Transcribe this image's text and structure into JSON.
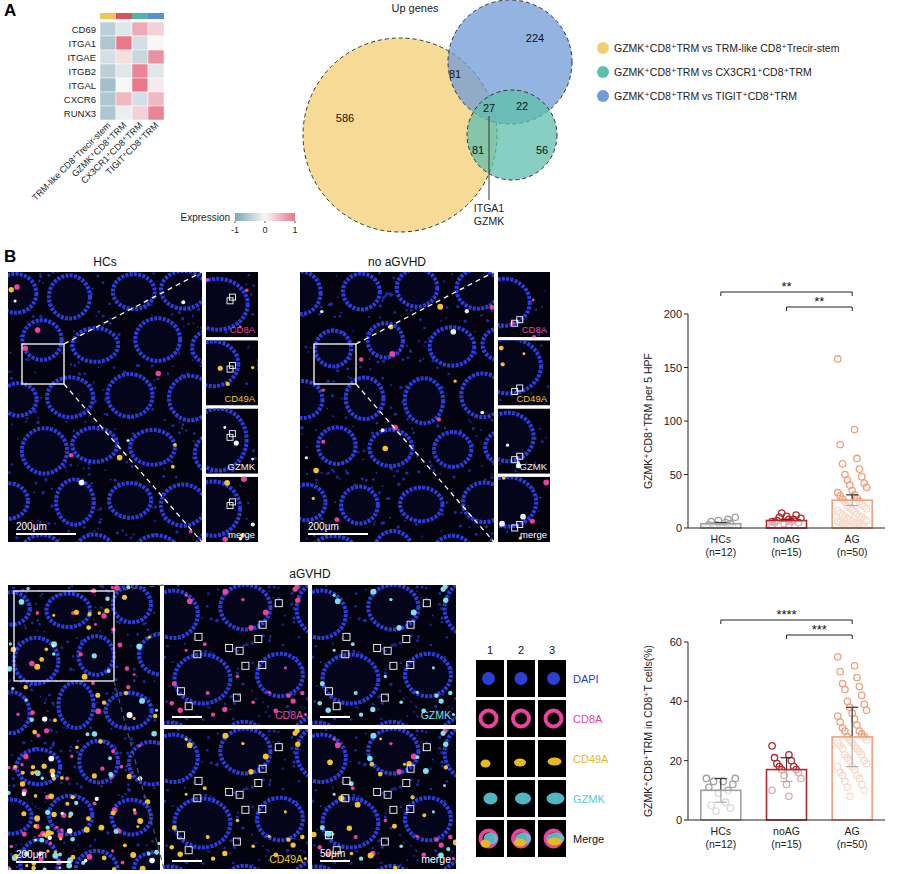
{
  "panel_labels": {
    "a": "A",
    "b": "B"
  },
  "chart_data": [
    {
      "type": "heatmap",
      "rows": [
        "CD69",
        "ITGA1",
        "ITGAE",
        "ITGB2",
        "ITGAL",
        "CXCR6",
        "RUNX3"
      ],
      "columns": [
        "TRM-like CD8⁺Trecir-stem",
        "GZMK⁺CD8⁺TRM",
        "CX3CR1⁺CD8⁺TRM",
        "TIGIT⁺CD8⁺TRM"
      ],
      "column_colors": [
        "#f2c45c",
        "#d9535e",
        "#4fb5a6",
        "#5b8fcf"
      ],
      "values": [
        [
          -0.5,
          -0.2,
          0.6,
          0.3
        ],
        [
          -0.6,
          1.0,
          -0.3,
          0.0
        ],
        [
          -0.3,
          0.2,
          -0.4,
          0.8
        ],
        [
          -0.5,
          -0.2,
          0.9,
          -0.2
        ],
        [
          -0.7,
          0.0,
          1.0,
          0.1
        ],
        [
          -0.6,
          0.5,
          -0.3,
          0.5
        ],
        [
          -0.6,
          -0.1,
          0.3,
          0.9
        ]
      ],
      "colorbar": {
        "title": "Expression",
        "range": [
          -1,
          1
        ],
        "ticks": [
          -1,
          0,
          1
        ],
        "colors": [
          "#7ea6b6",
          "#f7f7f7",
          "#e8788a"
        ]
      }
    },
    {
      "type": "bar",
      "y_label": "GZMK⁺CD8⁺TRM per 5 HPF",
      "categories": [
        "HCs\n(n=12)",
        "noAG\n(n=15)",
        "AG\n(n=50)"
      ],
      "values": [
        4,
        7,
        26
      ],
      "errors": [
        1,
        1,
        5
      ],
      "points": [
        [
          1,
          2,
          3,
          5,
          6,
          8,
          2,
          4,
          3,
          1,
          7,
          10
        ],
        [
          2,
          3,
          5,
          6,
          7,
          8,
          10,
          12,
          14,
          5,
          4,
          9,
          11,
          6,
          8
        ],
        [
          158,
          92,
          78,
          65,
          60,
          55,
          50,
          48,
          45,
          42,
          40,
          38,
          35,
          33,
          31,
          30,
          28,
          27,
          25,
          24,
          22,
          21,
          20,
          19,
          18,
          17,
          16,
          15,
          14,
          13,
          12,
          11,
          10,
          10,
          9,
          8,
          8,
          7,
          6,
          6,
          5,
          5,
          4,
          4,
          3,
          3,
          2,
          2,
          1,
          1
        ]
      ],
      "colors": [
        "#a0a0a0",
        "#b0282c",
        "#f0a07c"
      ],
      "ylim": [
        0,
        200
      ],
      "yticks": [
        0,
        50,
        100,
        150,
        200
      ],
      "significance": [
        {
          "from": 0,
          "to": 2,
          "label": "**"
        },
        {
          "from": 1,
          "to": 2,
          "label": "**"
        }
      ]
    },
    {
      "type": "bar",
      "y_label": "GZMK⁺CD8⁺TRM in CD8⁺T cells(%)",
      "categories": [
        "HCs\n(n=12)",
        "noAG\n(n=15)",
        "AG\n(n=50)"
      ],
      "values": [
        10,
        17,
        28
      ],
      "errors": [
        4,
        4,
        10
      ],
      "points": [
        [
          14,
          13,
          11,
          6,
          5,
          10,
          13,
          4,
          3,
          12,
          9,
          14
        ],
        [
          25,
          22,
          21,
          20,
          19,
          18,
          18,
          17,
          17,
          16,
          15,
          14,
          12,
          10,
          8
        ],
        [
          55,
          52,
          50,
          48,
          46,
          45,
          44,
          42,
          40,
          39,
          38,
          37,
          36,
          35,
          34,
          33,
          32,
          31,
          30,
          30,
          29,
          28,
          28,
          27,
          27,
          26,
          26,
          25,
          25,
          24,
          24,
          23,
          22,
          22,
          21,
          20,
          20,
          19,
          18,
          18,
          17,
          16,
          15,
          15,
          14,
          13,
          12,
          11,
          10,
          8
        ]
      ],
      "colors": [
        "#a0a0a0",
        "#b0282c",
        "#f0a07c"
      ],
      "ylim": [
        0,
        60
      ],
      "yticks": [
        0,
        20,
        40,
        60
      ],
      "significance": [
        {
          "from": 0,
          "to": 2,
          "label": "****"
        },
        {
          "from": 1,
          "to": 2,
          "label": "***"
        }
      ]
    }
  ],
  "venn": {
    "title": "Up genes",
    "sets": [
      {
        "name": "GZMK⁺CD8⁺TRM vs TRM-like CD8⁺Trecir-stem",
        "color": "#f3cf73"
      },
      {
        "name": "GZMK⁺CD8⁺TRM vs CX3CR1⁺CD8⁺TRM",
        "color": "#5fbfae"
      },
      {
        "name": "GZMK⁺CD8⁺TRM vs TIGIT⁺CD8⁺TRM",
        "color": "#6f9bd6"
      }
    ],
    "regions": [
      {
        "sets": [
          0
        ],
        "count": 586
      },
      {
        "sets": [
          2
        ],
        "count": 224
      },
      {
        "sets": [
          0,
          2
        ],
        "count": 81
      },
      {
        "sets": [
          0,
          1,
          2
        ],
        "count": 27
      },
      {
        "sets": [
          1,
          2
        ],
        "count": 22
      },
      {
        "sets": [
          0,
          1
        ],
        "count": 81
      },
      {
        "sets": [
          1
        ],
        "count": 56
      }
    ],
    "annotation": [
      "ITGA1",
      "GZMK"
    ]
  },
  "images": {
    "hcs": {
      "title": "HCs",
      "scale_bar": "200μm",
      "channels": [
        {
          "name": "CD8A",
          "color": "#e8449c"
        },
        {
          "name": "CD49A",
          "color": "#f2c230"
        },
        {
          "name": "GZMK",
          "color": "#e9f6f7"
        },
        {
          "name": "merge",
          "color": "#ffffff"
        }
      ]
    },
    "no_agvhd": {
      "title": "no aGVHD",
      "scale_bar": "200μm",
      "channels": [
        {
          "name": "CD8A",
          "color": "#e8449c"
        },
        {
          "name": "CD49A",
          "color": "#f2c230"
        },
        {
          "name": "GZMK",
          "color": "#e9f6f7"
        },
        {
          "name": "merge",
          "color": "#ffffff"
        }
      ]
    },
    "agvhd": {
      "title": "aGVHD",
      "scale_bar": "200μm",
      "zoom_scale_bar": "50μm",
      "zoom_channels": [
        {
          "name": "CD8A",
          "color": "#e8449c"
        },
        {
          "name": "GZMK",
          "color": "#7fe0ea"
        },
        {
          "name": "CD49A",
          "color": "#f2c230"
        },
        {
          "name": "merge",
          "color": "#ffffff"
        }
      ],
      "cells": [
        "1",
        "2",
        "3"
      ],
      "cell_channels": [
        {
          "name": "DAPI",
          "color": "#2b3fd6"
        },
        {
          "name": "CD8A",
          "color": "#e8449c"
        },
        {
          "name": "CD49A",
          "color": "#e8b820"
        },
        {
          "name": "GZMK",
          "color": "#5cc8d8"
        },
        {
          "name": "Merge",
          "color": "#111111"
        }
      ]
    }
  }
}
